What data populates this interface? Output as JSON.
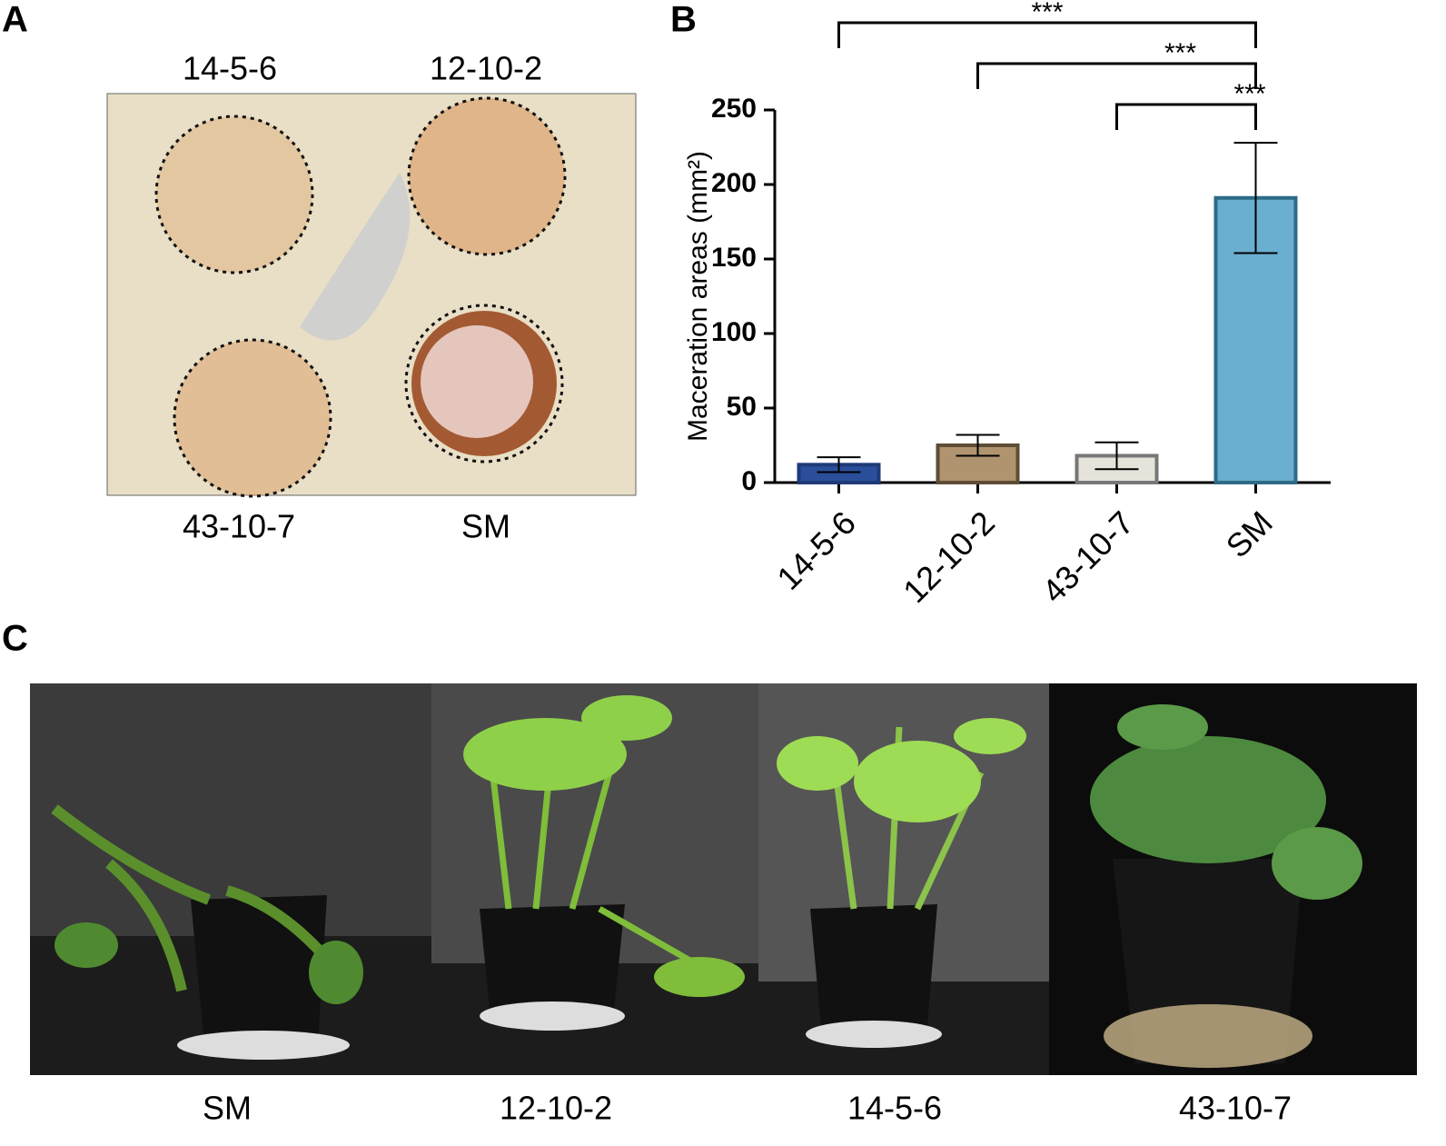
{
  "panels": {
    "a": {
      "label": "A",
      "spots": [
        "14-5-6",
        "12-10-2",
        "43-10-7",
        "SM"
      ]
    },
    "c": {
      "label": "C",
      "photos": [
        "SM",
        "12-10-2",
        "14-5-6",
        "43-10-7"
      ]
    }
  },
  "chart_data": {
    "type": "bar",
    "panel_label": "B",
    "ylabel": "Maceration areas (mm²)",
    "categories": [
      "14-5-6",
      "12-10-2",
      "43-10-7",
      "SM"
    ],
    "values": [
      12,
      25,
      18,
      191
    ],
    "errors": [
      5,
      7,
      9,
      37
    ],
    "colors": [
      "#2a4e9a",
      "#b09470",
      "#e6e3da",
      "#6aaed0"
    ],
    "edge_colors": [
      "#1e3a78",
      "#5e4d36",
      "#777777",
      "#2e6b85"
    ],
    "ylim": [
      0,
      250
    ],
    "yticks": [
      0,
      50,
      100,
      150,
      200,
      250
    ],
    "significance": [
      {
        "pair": [
          0,
          3
        ],
        "label": "***"
      },
      {
        "pair": [
          1,
          3
        ],
        "label": "***"
      },
      {
        "pair": [
          2,
          3
        ],
        "label": "***"
      }
    ]
  }
}
